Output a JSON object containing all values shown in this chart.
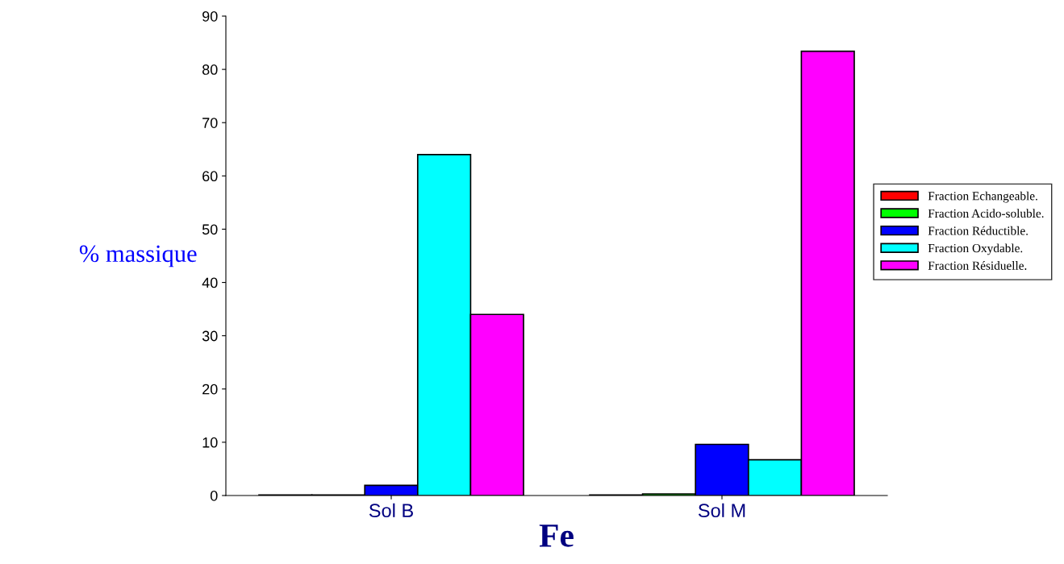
{
  "chart_data": {
    "type": "bar",
    "xlabel": "Fe",
    "ylabel": "% massique",
    "categories": [
      "Sol B",
      "Sol M"
    ],
    "series": [
      {
        "name": "Fraction Echangeable.",
        "color": "#ff0000",
        "values": [
          0.1,
          0.1
        ]
      },
      {
        "name": "Fraction Acido-soluble.",
        "color": "#00ff00",
        "values": [
          0.1,
          0.3
        ]
      },
      {
        "name": "Fraction Réductible.",
        "color": "#0000ff",
        "values": [
          1.9,
          9.6
        ]
      },
      {
        "name": "Fraction Oxydable.",
        "color": "#00ffff",
        "values": [
          64,
          6.7
        ]
      },
      {
        "name": "Fraction Résiduelle.",
        "color": "#ff00ff",
        "values": [
          34,
          83.4
        ]
      }
    ],
    "ylim": [
      0,
      90
    ],
    "yticks": [
      0,
      10,
      20,
      30,
      40,
      50,
      60,
      70,
      80,
      90
    ],
    "grid": false,
    "legend": "right"
  }
}
